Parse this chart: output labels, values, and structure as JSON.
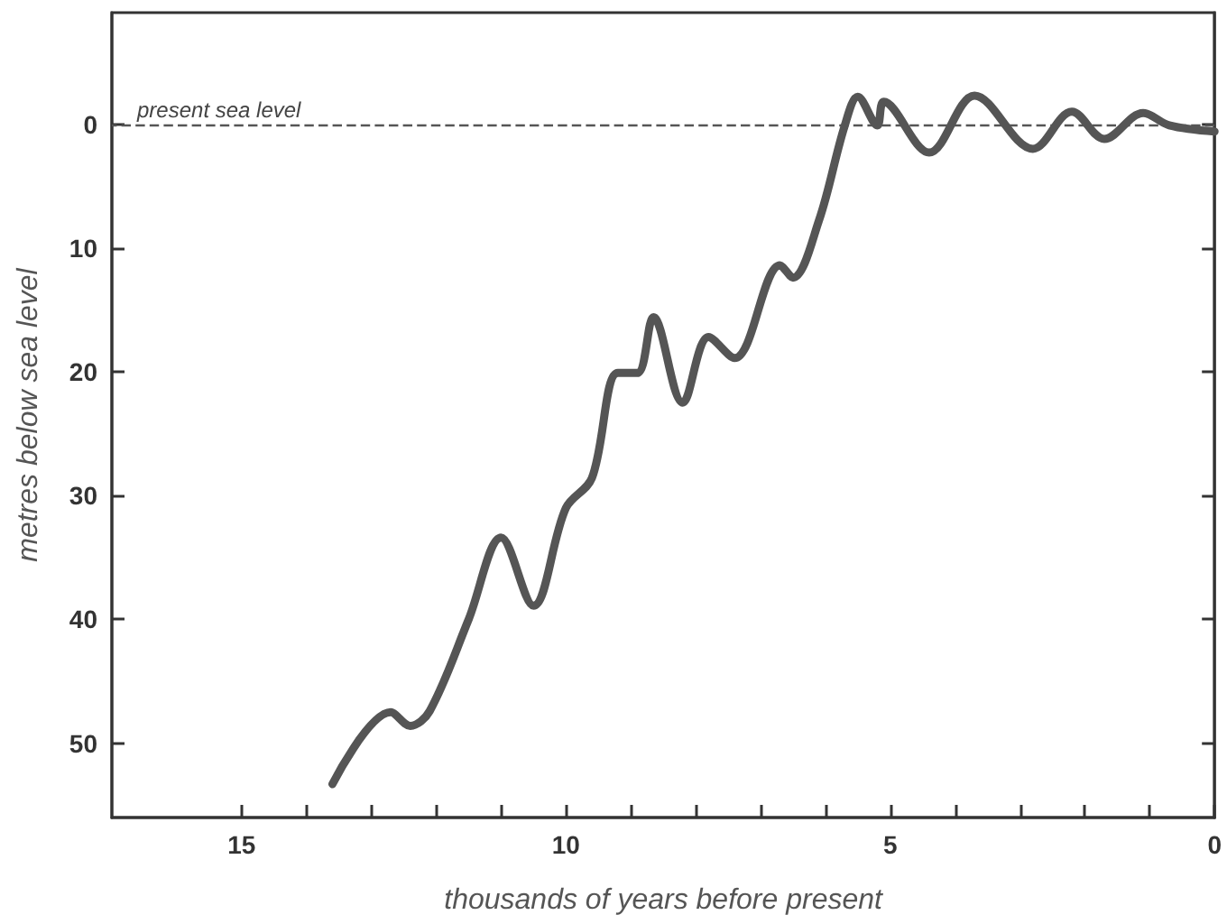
{
  "chart_data": {
    "type": "line",
    "xlabel": "thousands of years before present",
    "ylabel": "metres below sea level",
    "x": [
      13.6,
      12.7,
      12.4,
      12.1,
      11.5,
      11.0,
      10.5,
      10.0,
      9.6,
      9.2,
      8.9,
      8.65,
      8.2,
      7.8,
      7.4,
      6.7,
      6.5,
      6.1,
      5.7,
      5.5,
      5.2,
      5.1,
      4.4,
      3.7,
      2.8,
      2.2,
      1.7,
      1.1,
      0.7,
      0.0
    ],
    "series": [
      {
        "color": "#555555",
        "values": [
          53.3,
          47.5,
          48.6,
          47.4,
          40.0,
          33.4,
          38.9,
          31.0,
          28.6,
          20.1,
          20.1,
          15.6,
          22.5,
          17.2,
          18.9,
          11.4,
          12.4,
          7.8,
          0.1,
          -2.2,
          0.1,
          -1.8,
          2.3,
          -2.3,
          2.0,
          -1.0,
          1.2,
          -0.9,
          0.1,
          0.6
        ]
      }
    ],
    "xlim": [
      17,
      0
    ],
    "xticks": [
      15,
      {
        "value": 14,
        "label": null
      },
      {
        "value": 13,
        "label": null
      },
      {
        "value": 12,
        "label": null
      },
      {
        "value": 11,
        "label": null
      },
      10,
      {
        "value": 9,
        "label": null
      },
      {
        "value": 8,
        "label": null
      },
      {
        "value": 7,
        "label": null
      },
      {
        "value": 6,
        "label": null
      },
      5,
      {
        "value": 4,
        "label": null
      },
      {
        "value": 3,
        "label": null
      },
      {
        "value": 2,
        "label": null
      },
      {
        "value": 1,
        "label": null
      },
      0
    ],
    "ylim": [
      56,
      -9
    ],
    "yticks": [
      0,
      10,
      20,
      30,
      40,
      50
    ],
    "ref_lines": [
      {
        "axis": "y",
        "value": 0,
        "label": "present sea level",
        "color": "#555555",
        "line_style": "dashed"
      }
    ],
    "grid": false,
    "marker": "none",
    "line_style": "solid"
  }
}
